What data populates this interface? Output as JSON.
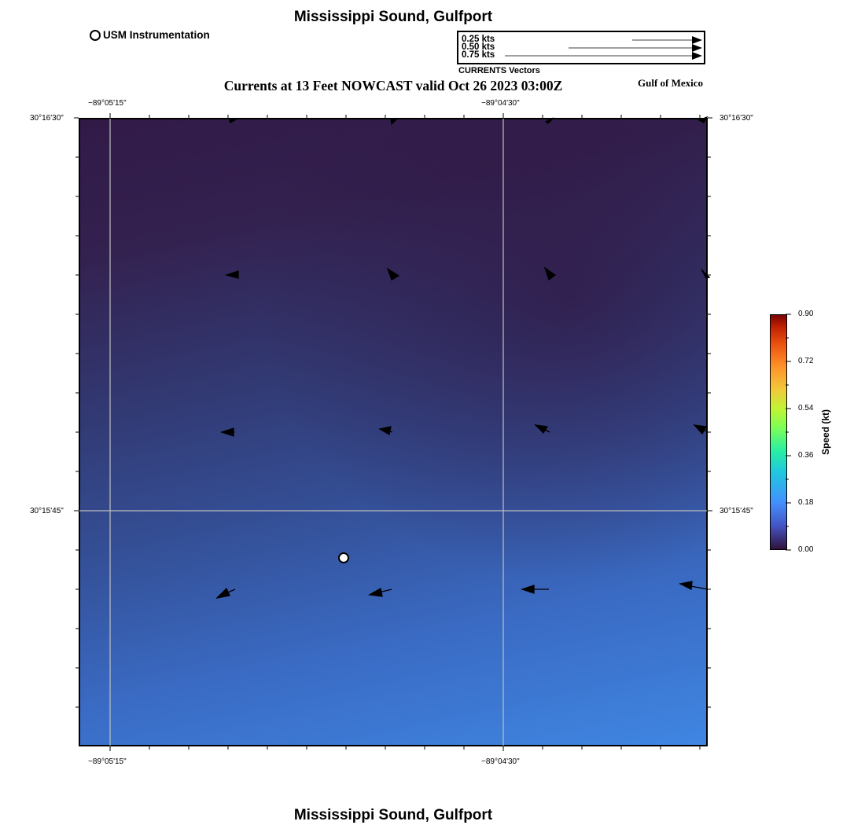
{
  "header": {
    "title": "Mississippi Sound, Gulfport",
    "subtitle": "Currents at 13 Feet NOWCAST valid Oct 26 2023 03:00Z",
    "region": "Gulf of Mexico"
  },
  "footer": {
    "title": "Mississippi Sound, Gulfport"
  },
  "legend": {
    "station_label": "USM Instrumentation"
  },
  "vector_scale": {
    "labels": [
      "0.25 kts",
      "0.50 kts",
      "0.75 kts"
    ],
    "caption": "CURRENTS Vectors"
  },
  "axes": {
    "lon_top": [
      "−89°05'15\"",
      "−89°04'30\""
    ],
    "lon_bottom": [
      "−89°05'15\"",
      "−89°04'30\""
    ],
    "lat_left": [
      "30°16'30\"",
      "30°15'45\""
    ],
    "lat_right": [
      "30°16'30\"",
      "30°15'45\""
    ]
  },
  "colorbar": {
    "title": "Speed (kt)",
    "ticks": [
      "0.90",
      "0.72",
      "0.54",
      "0.36",
      "0.18",
      "0.00"
    ]
  },
  "colors": {
    "vector": "#000000",
    "grid": "#bfbfbf",
    "frame": "#000000"
  }
}
